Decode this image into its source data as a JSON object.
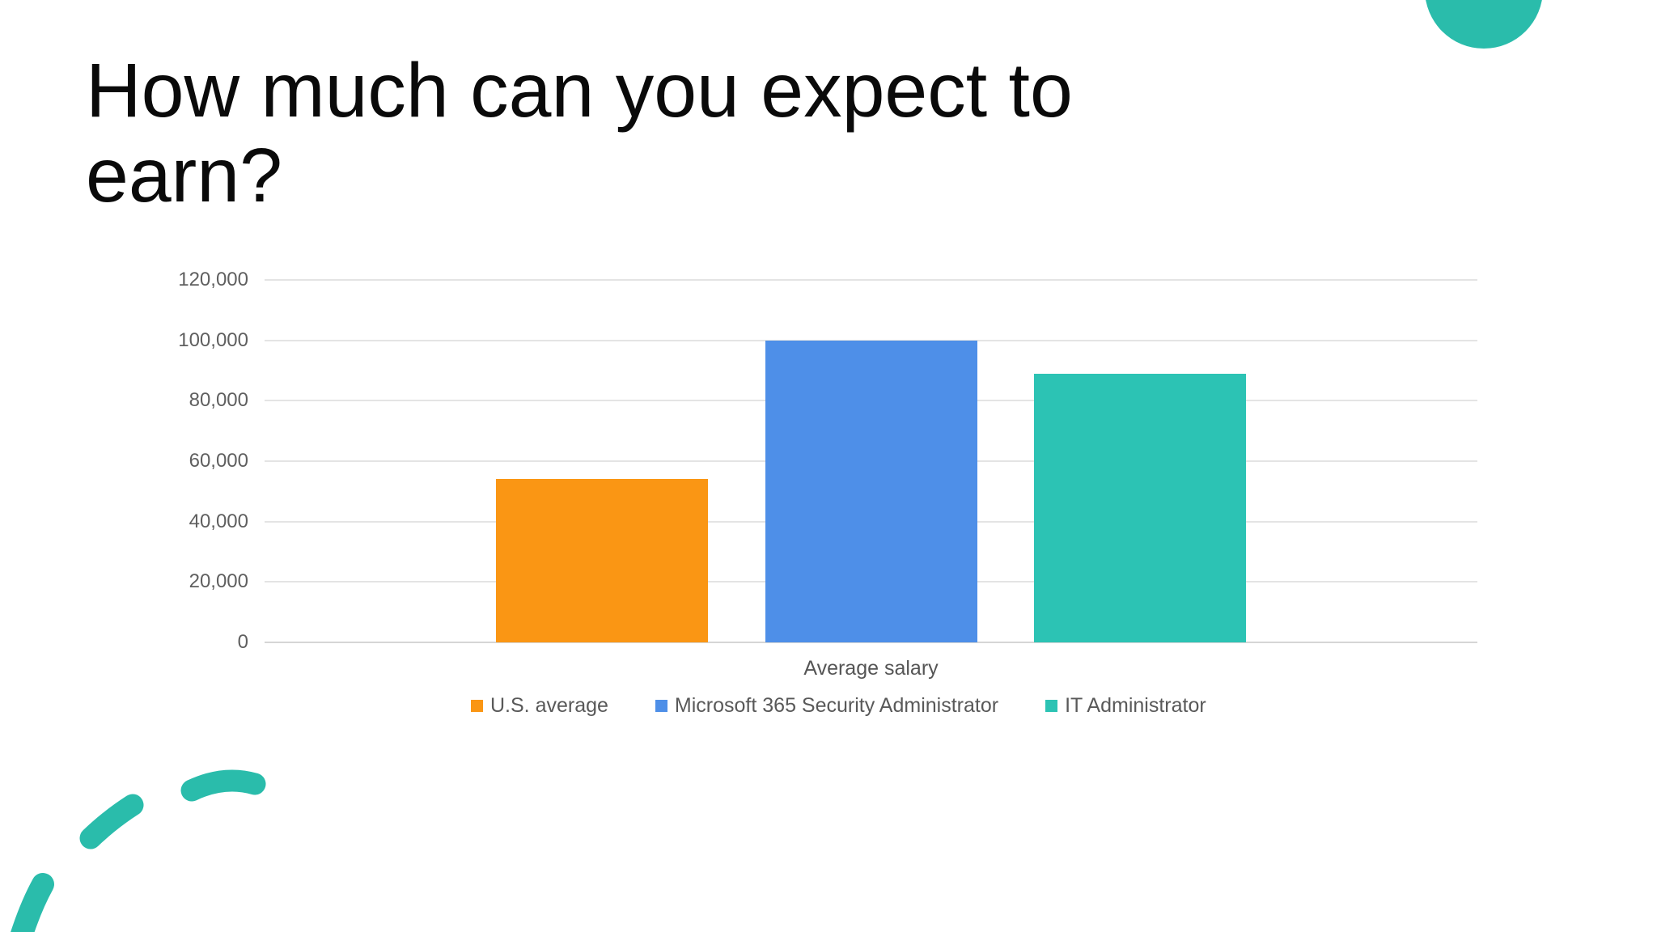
{
  "slide": {
    "title": "How much can you expect to earn?",
    "background_color": "#ffffff",
    "decorations": {
      "circle_top_right_color": "#2abcab",
      "dashed_arc_color": "#2abcab"
    }
  },
  "chart_data": {
    "type": "bar",
    "title": "",
    "x_category_label": "Average salary",
    "categories": [
      "Average salary"
    ],
    "series": [
      {
        "name": "U.S. average",
        "value": 54000,
        "color": "#fa9614"
      },
      {
        "name": "Microsoft 365 Security Administrator",
        "value": 100000,
        "color": "#4e8fe8"
      },
      {
        "name": "IT Administrator",
        "value": 89000,
        "color": "#2cc3b4"
      }
    ],
    "y_axis": {
      "min": 0,
      "max": 120000,
      "tick_interval": 20000,
      "tick_labels_top_to_bottom": [
        "120,000",
        "100,000",
        "80,000",
        "60,000",
        "40,000",
        "20,000",
        "0"
      ]
    },
    "grid": true,
    "legend_position": "bottom",
    "axis_text_color": "#5f5f5f",
    "gridline_color": "#e4e4e4"
  }
}
